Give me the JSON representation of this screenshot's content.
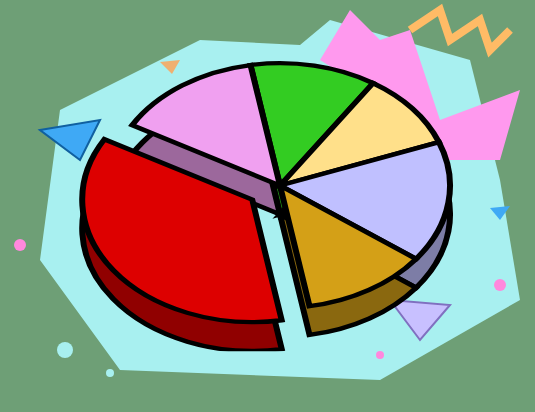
{
  "chart_data": {
    "type": "pie",
    "values": [
      12,
      10,
      16,
      12,
      36,
      14
    ],
    "colors": [
      "#33cc22",
      "#ffe08a",
      "#c0c0ff",
      "#d4a017",
      "#dd0000",
      "#f0a0f0"
    ]
  }
}
